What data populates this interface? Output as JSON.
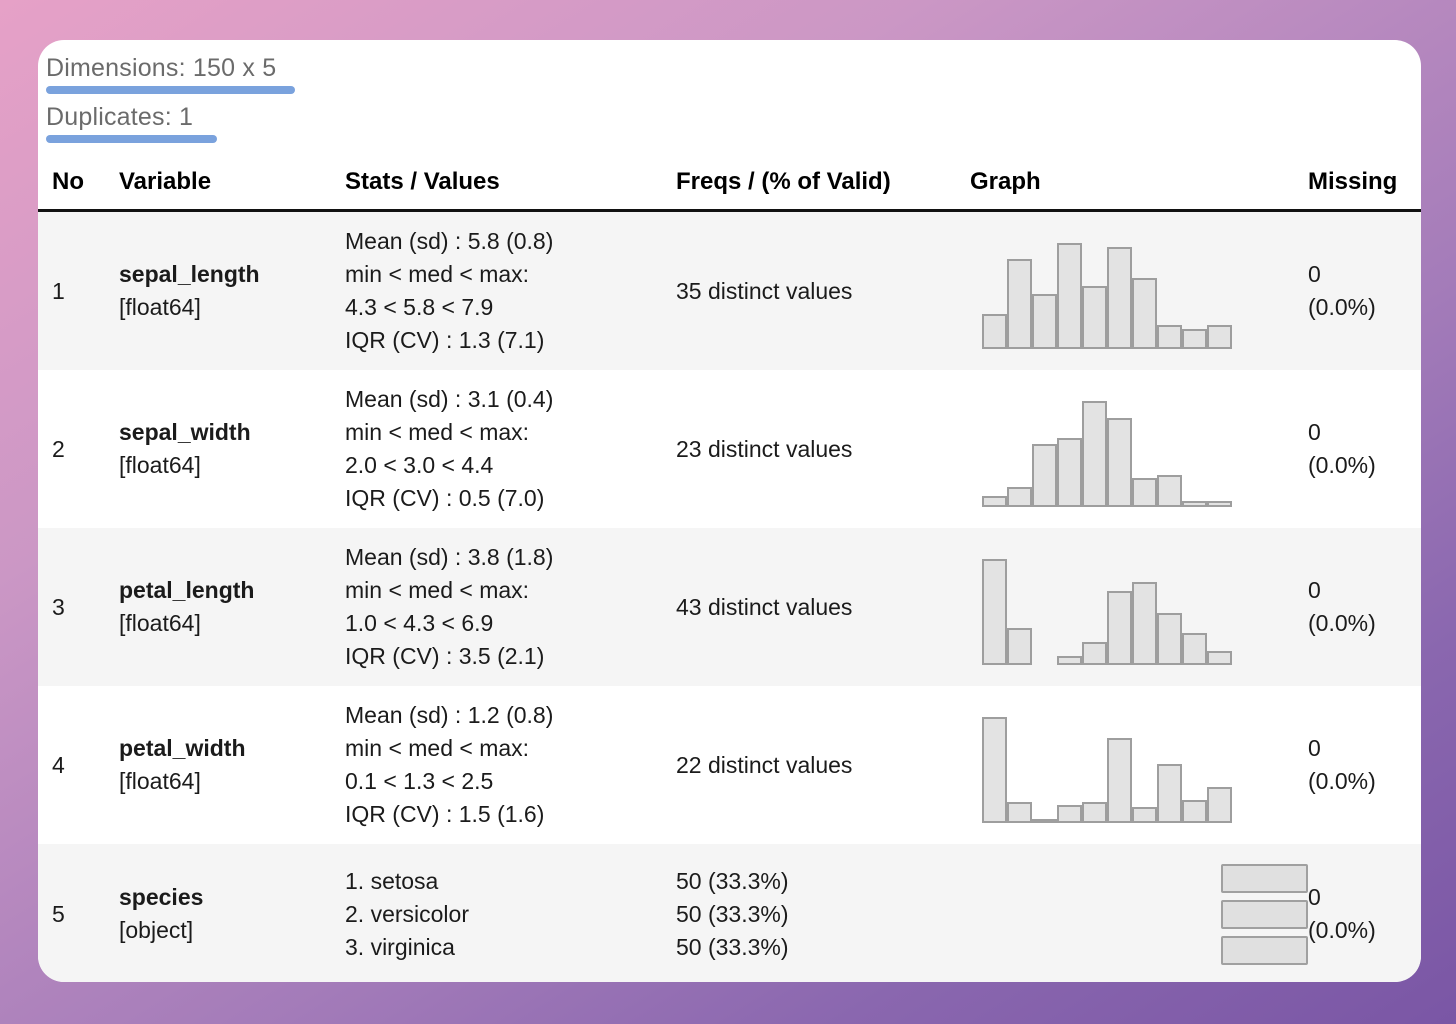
{
  "meta": {
    "dimensions": "Dimensions: 150 x 5",
    "duplicates": "Duplicates: 1"
  },
  "colors": {
    "underline_accent": "#7aa2dd",
    "stripe_gray": "#f5f5f5",
    "bar_fill": "#e3e3e3",
    "bar_border": "#9e9e9e",
    "background_gradient": [
      "#e6a1c7",
      "#7a56a5"
    ],
    "header_rule": "#121212"
  },
  "table": {
    "headers": [
      "No",
      "Variable",
      "Stats / Values",
      "Freqs / (% of Valid)",
      "Graph",
      "Missing"
    ],
    "rows": [
      {
        "no": "1",
        "variable": "sepal_length",
        "type": "[float64]",
        "stats": [
          "Mean (sd) : 5.8 (0.8)",
          "min < med < max:",
          "4.3 < 5.8 < 7.9",
          "IQR (CV) : 1.3 (7.1)"
        ],
        "freqs": [
          "35 distinct values",
          "",
          ""
        ],
        "graph": {
          "kind": "histogram",
          "values": [
            9,
            23,
            14,
            27,
            16,
            26,
            18,
            6,
            5,
            6
          ]
        },
        "missing": [
          "0",
          "(0.0%)"
        ]
      },
      {
        "no": "2",
        "variable": "sepal_width",
        "type": "[float64]",
        "stats": [
          "Mean (sd) : 3.1 (0.4)",
          "min < med < max:",
          "2.0 < 3.0 < 4.4",
          "IQR (CV) : 0.5 (7.0)"
        ],
        "freqs": [
          "23 distinct values",
          "",
          ""
        ],
        "graph": {
          "kind": "histogram",
          "values": [
            4,
            7,
            22,
            24,
            37,
            31,
            10,
            11,
            2,
            2
          ]
        },
        "missing": [
          "0",
          "(0.0%)"
        ]
      },
      {
        "no": "3",
        "variable": "petal_length",
        "type": "[float64]",
        "stats": [
          "Mean (sd) : 3.8 (1.8)",
          "min < med < max:",
          "1.0 < 4.3 < 6.9",
          "IQR (CV) : 3.5 (2.1)"
        ],
        "freqs": [
          "43 distinct values",
          "",
          ""
        ],
        "graph": {
          "kind": "histogram",
          "values": [
            37,
            13,
            0,
            3,
            8,
            26,
            29,
            18,
            11,
            5
          ]
        },
        "missing": [
          "0",
          "(0.0%)"
        ]
      },
      {
        "no": "4",
        "variable": "petal_width",
        "type": "[float64]",
        "stats": [
          "Mean (sd) : 1.2 (0.8)",
          "min < med < max:",
          "0.1 < 1.3 < 2.5",
          "IQR (CV) : 1.5 (1.6)"
        ],
        "freqs": [
          "22 distinct values",
          "",
          ""
        ],
        "graph": {
          "kind": "histogram",
          "values": [
            41,
            8,
            1,
            7,
            8,
            33,
            6,
            23,
            9,
            14
          ]
        },
        "missing": [
          "0",
          "(0.0%)"
        ]
      },
      {
        "no": "5",
        "variable": "species",
        "type": "[object]",
        "stats": [
          "1. setosa",
          "2. versicolor",
          "3. virginica",
          ""
        ],
        "freqs": [
          "50 (33.3%)",
          "50 (33.3%)",
          "50 (33.3%)"
        ],
        "graph": {
          "kind": "catbars",
          "values": [
            33.3,
            33.3,
            33.3
          ]
        },
        "missing": [
          "0",
          "(0.0%)"
        ]
      }
    ]
  }
}
